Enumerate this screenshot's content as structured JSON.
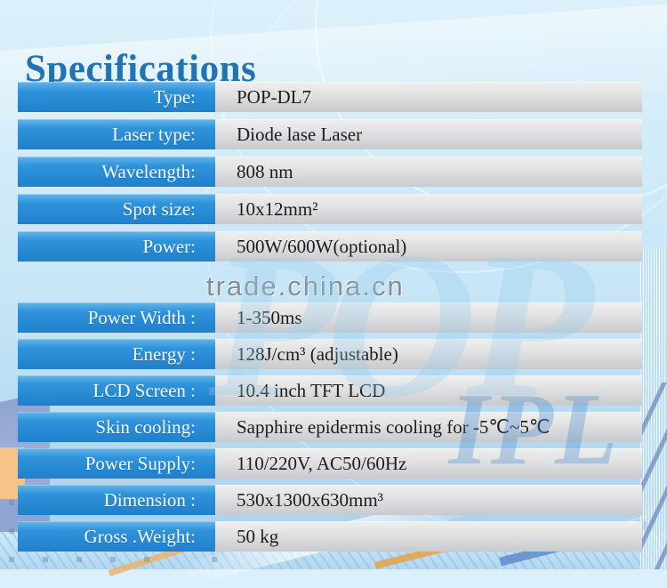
{
  "page": {
    "title": "Specifications"
  },
  "watermarks": {
    "site": "trade.china.cn",
    "brand_large": "POP",
    "brand_small": "IPL"
  },
  "table": {
    "section1": [
      {
        "label": "Type:",
        "value": "POP-DL7"
      },
      {
        "label": "Laser type:",
        "value": "Diode lase Laser"
      },
      {
        "label": "Wavelength:",
        "value": "808 nm"
      },
      {
        "label": "Spot size:",
        "value": "10x12mm²"
      },
      {
        "label": "Power:",
        "value": "500W/600W(optional)"
      }
    ],
    "section2": [
      {
        "label": "Power Width :",
        "value": "1-350ms"
      },
      {
        "label": "Energy :",
        "value": "128J/cm³ (adjustable)"
      },
      {
        "label": "LCD Screen :",
        "value": "10.4 inch TFT LCD"
      },
      {
        "label": "Skin cooling:",
        "value": "Sapphire epidermis cooling for -5℃~5℃"
      },
      {
        "label": "Power Supply:",
        "value": "110/220V, AC50/60Hz"
      },
      {
        "label": "Dimension :",
        "value": "530x1300x630mm³"
      },
      {
        "label": "Gross .Weight:",
        "value": "50 kg"
      }
    ]
  },
  "colors": {
    "accent_blue": "#2186D3",
    "title_blue": "#2173B2",
    "label_text": "#F6FBFF",
    "value_text": "#1C1C1C",
    "watermark_gray": "#7A8289",
    "deco_orange": "#F6C487",
    "deco_periwinkle": "#93A6CE"
  }
}
